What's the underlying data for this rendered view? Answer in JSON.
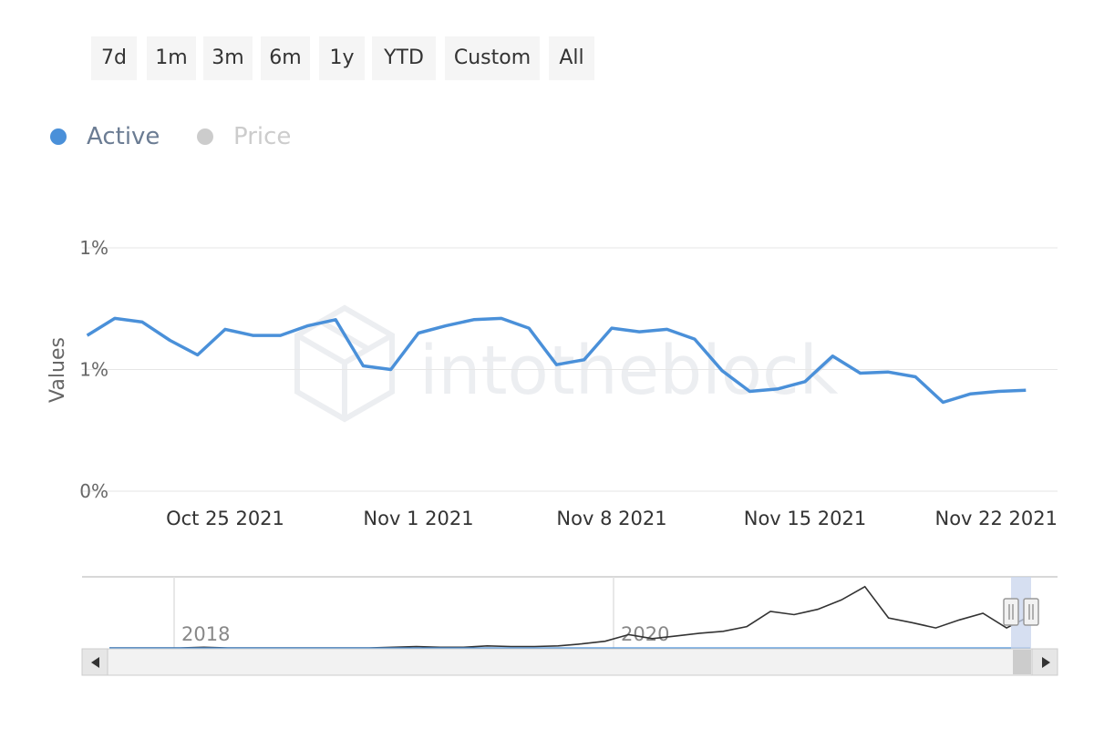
{
  "range_selector": {
    "buttons": [
      "7d",
      "1m",
      "3m",
      "6m",
      "1y",
      "YTD",
      "Custom",
      "All"
    ]
  },
  "legend": {
    "items": [
      {
        "label": "Active",
        "color": "#4a90d9",
        "active": true
      },
      {
        "label": "Price",
        "color": "#cccccc",
        "active": false
      }
    ]
  },
  "watermark": "intotheblock",
  "colors": {
    "series": "#4a90d9",
    "grid": "#e6e6e6",
    "axis_text": "#666666",
    "navigator_line": "#333333",
    "navigator_mask": "#c8d4ec"
  },
  "chart_data": {
    "type": "line",
    "title": "",
    "ylabel": "Values",
    "xlabel": "",
    "y_ticks": [
      "0%",
      "1%",
      "1%"
    ],
    "y_tick_values": [
      0.7,
      0.8,
      0.9
    ],
    "ylim": [
      0.7,
      0.9
    ],
    "x_tick_labels": [
      "Oct 25 2021",
      "Nov 1 2021",
      "Nov 8 2021",
      "Nov 15 2021",
      "Nov 22 2021"
    ],
    "x_tick_dates": [
      "2021-10-25",
      "2021-11-01",
      "2021-11-08",
      "2021-11-15",
      "2021-11-22"
    ],
    "grid": true,
    "legend_position": "top-left",
    "series": [
      {
        "name": "Active",
        "x": [
          "2021-10-20",
          "2021-10-21",
          "2021-10-22",
          "2021-10-23",
          "2021-10-24",
          "2021-10-25",
          "2021-10-26",
          "2021-10-27",
          "2021-10-28",
          "2021-10-29",
          "2021-10-30",
          "2021-10-31",
          "2021-11-01",
          "2021-11-02",
          "2021-11-03",
          "2021-11-04",
          "2021-11-05",
          "2021-11-06",
          "2021-11-07",
          "2021-11-08",
          "2021-11-09",
          "2021-11-10",
          "2021-11-11",
          "2021-11-12",
          "2021-11-13",
          "2021-11-14",
          "2021-11-15",
          "2021-11-16",
          "2021-11-17",
          "2021-11-18",
          "2021-11-19",
          "2021-11-20",
          "2021-11-21",
          "2021-11-22",
          "2021-11-23"
        ],
        "values": [
          0.828,
          0.842,
          0.839,
          0.824,
          0.812,
          0.833,
          0.828,
          0.828,
          0.836,
          0.841,
          0.803,
          0.8,
          0.83,
          0.836,
          0.841,
          0.842,
          0.834,
          0.804,
          0.808,
          0.834,
          0.831,
          0.833,
          0.825,
          0.799,
          0.782,
          0.784,
          0.79,
          0.811,
          0.797,
          0.798,
          0.794,
          0.773,
          0.78,
          0.782,
          0.783
        ]
      }
    ],
    "navigator": {
      "x_tick_labels": [
        "2018",
        "2020"
      ],
      "series_name": "Price",
      "values": [
        0.0,
        0.0,
        0.0,
        0.0,
        0.01,
        0.0,
        0.0,
        0.0,
        0.0,
        0.0,
        0.0,
        0.0,
        0.01,
        0.02,
        0.01,
        0.01,
        0.03,
        0.02,
        0.02,
        0.03,
        0.06,
        0.1,
        0.2,
        0.14,
        0.18,
        0.22,
        0.25,
        0.32,
        0.55,
        0.5,
        0.58,
        0.72,
        0.92,
        0.45,
        0.38,
        0.3,
        0.42,
        0.52,
        0.3,
        0.48
      ]
    }
  }
}
